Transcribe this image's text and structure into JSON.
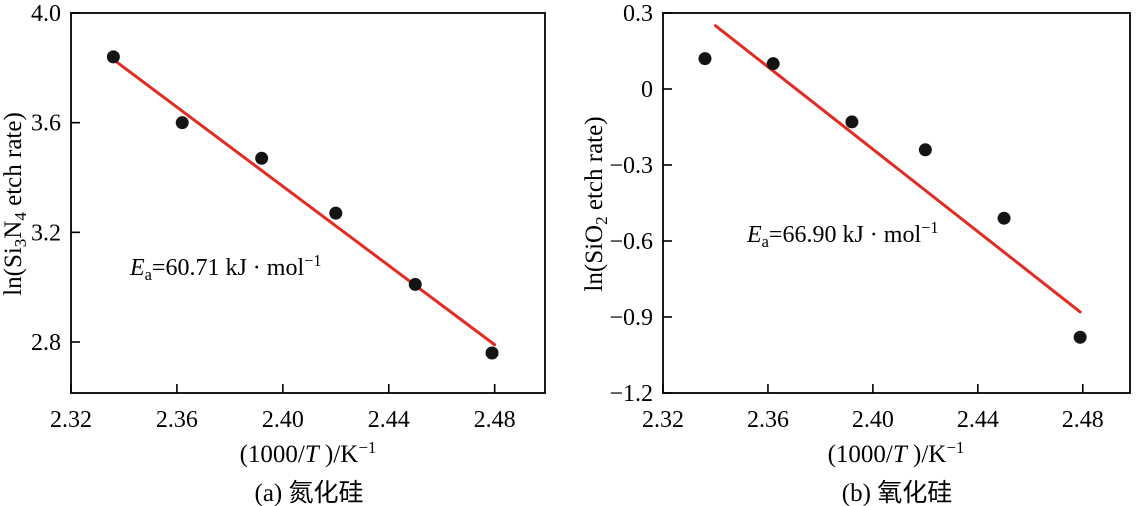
{
  "figure": {
    "background": "#ffffff",
    "line_color": "#e12c26",
    "point_color": "#141414",
    "axis_color": "#000000"
  },
  "chart_data": [
    {
      "id": "a",
      "type": "scatter",
      "caption": "(a) 氮化硅",
      "xlabel_plain": "(1000/T )/K−1",
      "ylabel_plain": "ln(Si3N4 etch rate)",
      "annotation_plain": "Ea=60.71 kJ · mol−1",
      "xlabel_parts": [
        {
          "t": "(1000/"
        },
        {
          "t": "T",
          "style": "italic"
        },
        {
          "t": " )/K"
        },
        {
          "t": "−1",
          "style": "sup"
        }
      ],
      "ylabel_parts": [
        {
          "t": "ln(Si"
        },
        {
          "t": "3",
          "style": "sub"
        },
        {
          "t": "N"
        },
        {
          "t": "4",
          "style": "sub"
        },
        {
          "t": " etch rate)"
        }
      ],
      "annotation_parts": [
        {
          "t": "E",
          "style": "italic"
        },
        {
          "t": "a",
          "style": "sub"
        },
        {
          "t": "=60.71 kJ · mol"
        },
        {
          "t": "−1",
          "style": "sup"
        }
      ],
      "x": [
        2.336,
        2.362,
        2.392,
        2.42,
        2.45,
        2.479
      ],
      "y": [
        3.84,
        3.6,
        3.47,
        3.27,
        3.01,
        2.76
      ],
      "fit_line": {
        "x1": 2.336,
        "y1": 3.83,
        "x2": 2.48,
        "y2": 2.79
      },
      "xlim": [
        2.32,
        2.499
      ],
      "ylim": [
        2.614,
        4.0
      ],
      "xticks": {
        "values": [
          2.32,
          2.36,
          2.4,
          2.44,
          2.48
        ],
        "labels": [
          "2.32",
          "2.36",
          "2.40",
          "2.44",
          "2.48"
        ]
      },
      "yticks": {
        "values": [
          4.0,
          3.6,
          3.2,
          2.8
        ],
        "labels": [
          "4.0",
          "3.6",
          "3.2",
          "2.8"
        ]
      },
      "grid": false,
      "legend": null
    },
    {
      "id": "b",
      "type": "scatter",
      "caption": "(b) 氧化硅",
      "xlabel_plain": "(1000/T )/K−1",
      "ylabel_plain": "ln(SiO2 etch rate)",
      "annotation_plain": "Ea=66.90 kJ · mol−1",
      "xlabel_parts": [
        {
          "t": "(1000/"
        },
        {
          "t": "T",
          "style": "italic"
        },
        {
          "t": " )/K"
        },
        {
          "t": "−1",
          "style": "sup"
        }
      ],
      "ylabel_parts": [
        {
          "t": "ln(SiO"
        },
        {
          "t": "2",
          "style": "sub"
        },
        {
          "t": " etch rate)"
        }
      ],
      "annotation_parts": [
        {
          "t": "E",
          "style": "italic"
        },
        {
          "t": "a",
          "style": "sub"
        },
        {
          "t": "=66.90 kJ · mol"
        },
        {
          "t": "−1",
          "style": "sup"
        }
      ],
      "x": [
        2.336,
        2.362,
        2.392,
        2.42,
        2.45,
        2.479
      ],
      "y": [
        0.12,
        0.1,
        -0.13,
        -0.24,
        -0.51,
        -0.98
      ],
      "fit_line": {
        "x1": 2.34,
        "y1": 0.25,
        "x2": 2.479,
        "y2": -0.88
      },
      "xlim": [
        2.32,
        2.498
      ],
      "ylim": [
        -1.2,
        0.3
      ],
      "xticks": {
        "values": [
          2.32,
          2.36,
          2.4,
          2.44,
          2.48
        ],
        "labels": [
          "2.32",
          "2.36",
          "2.40",
          "2.44",
          "2.48"
        ]
      },
      "yticks": {
        "values": [
          0.3,
          0,
          -0.3,
          -0.6,
          -0.9,
          -1.2
        ],
        "labels": [
          "0.3",
          "0",
          "−0.3",
          "−0.6",
          "−0.9",
          "−1.2"
        ]
      },
      "grid": false,
      "legend": null
    }
  ]
}
